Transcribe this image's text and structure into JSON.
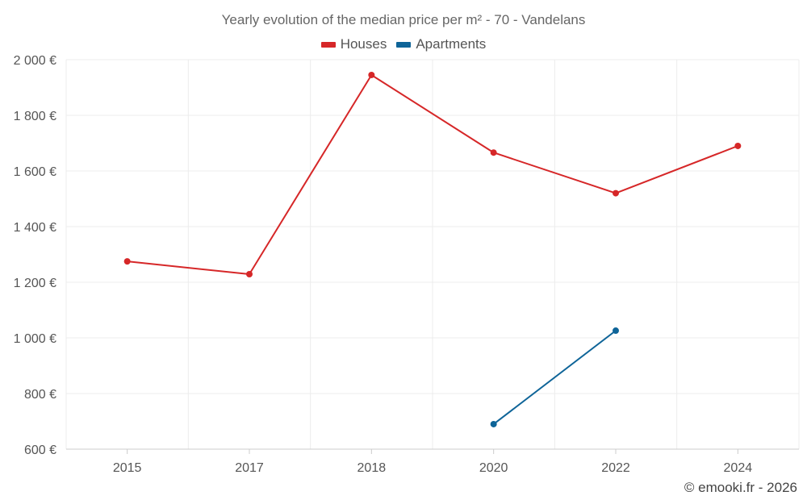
{
  "chart_data": {
    "type": "line",
    "title": "Yearly evolution of the median price per m² - 70 - Vandelans",
    "categories": [
      "2015",
      "2017",
      "2018",
      "2020",
      "2022",
      "2024"
    ],
    "series": [
      {
        "name": "Houses",
        "color": "#d62728",
        "values": [
          1275,
          1229,
          1945,
          1666,
          1520,
          1690
        ]
      },
      {
        "name": "Apartments",
        "color": "#0e6498",
        "values": [
          null,
          null,
          null,
          690,
          1026,
          null
        ]
      }
    ],
    "ylim": [
      600,
      2000
    ],
    "yticks": [
      600,
      800,
      1000,
      1200,
      1400,
      1600,
      1800,
      2000
    ],
    "ytick_labels": [
      "600 €",
      "800 €",
      "1 000 €",
      "1 200 €",
      "1 400 €",
      "1 600 €",
      "1 800 €",
      "2 000 €"
    ],
    "xlabel": "",
    "ylabel": "",
    "legend_position": "top-center",
    "grid": true
  },
  "footer": {
    "credit": "© emooki.fr - 2026"
  }
}
